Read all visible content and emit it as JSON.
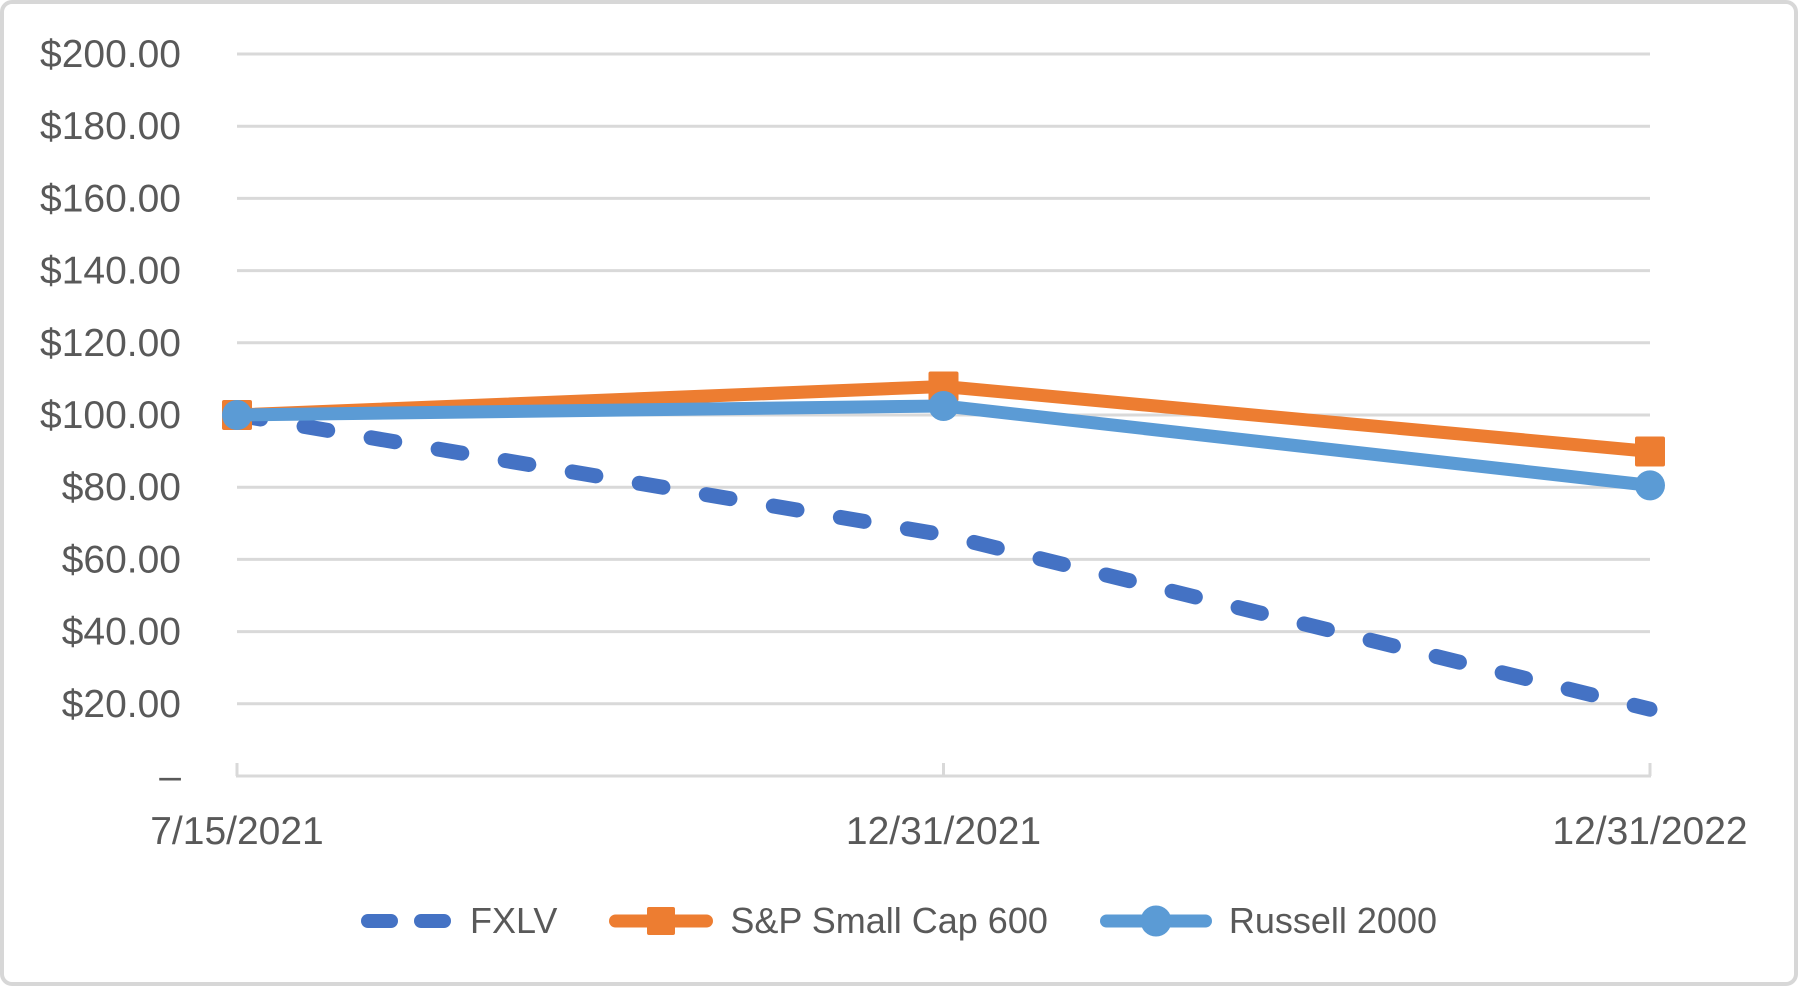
{
  "chart_data": {
    "type": "line",
    "title": "",
    "xlabel": "",
    "ylabel": "",
    "categories": [
      "7/15/2021",
      "12/31/2021",
      "12/31/2022"
    ],
    "series": [
      {
        "name": "FXLV",
        "values": [
          100.0,
          66.8,
          18.5
        ],
        "color": "#4472C4",
        "line_style": "dashed",
        "marker": "none"
      },
      {
        "name": "S&P Small Cap 600",
        "values": [
          100.0,
          107.9,
          89.9
        ],
        "color": "#ED7D31",
        "line_style": "solid",
        "marker": "square"
      },
      {
        "name": "Russell 2000",
        "values": [
          100.0,
          102.5,
          80.5
        ],
        "color": "#5B9BD5",
        "line_style": "solid",
        "marker": "circle"
      }
    ],
    "ylim": [
      0,
      200
    ],
    "y_tick_interval": 20,
    "y_tick_values": [
      200,
      180,
      160,
      140,
      120,
      100,
      80,
      60,
      40,
      20,
      0
    ],
    "y_tick_labels": [
      "$200.00",
      "$180.00",
      "$160.00",
      "$140.00",
      "$120.00",
      "$100.00",
      "$80.00",
      "$60.00",
      "$40.00",
      "$20.00",
      "–"
    ],
    "grid": "horizontal-major",
    "legend_position": "bottom",
    "gridline_color": "#d9d9d9",
    "axis_color": "#d9d9d9",
    "text_color": "#595959"
  }
}
